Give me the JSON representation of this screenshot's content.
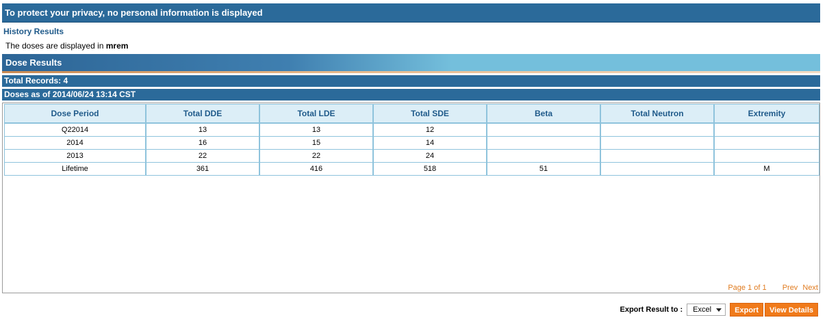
{
  "privacy_banner": "To protect your privacy, no personal information is displayed",
  "history": {
    "title": "History Results",
    "units_prefix": "The doses are displayed in",
    "units": "mrem"
  },
  "dose_results": {
    "header": "Dose Results",
    "total_records": "Total Records: 4",
    "as_of": "Doses as of 2014/06/24 13:14 CST"
  },
  "table": {
    "columns": [
      "Dose Period",
      "Total DDE",
      "Total LDE",
      "Total SDE",
      "Beta",
      "Total Neutron",
      "Extremity"
    ],
    "rows": [
      [
        "Q22014",
        "13",
        "13",
        "12",
        "",
        "",
        ""
      ],
      [
        "2014",
        "16",
        "15",
        "14",
        "",
        "",
        ""
      ],
      [
        "2013",
        "22",
        "22",
        "24",
        "",
        "",
        ""
      ],
      [
        "Lifetime",
        "361",
        "416",
        "518",
        "51",
        "",
        "M"
      ]
    ]
  },
  "pager": {
    "page_info": "Page 1 of 1",
    "prev": "Prev",
    "next": "Next"
  },
  "export": {
    "label": "Export Result to :",
    "format_selected": "Excel",
    "export_button": "Export",
    "view_details_button": "View Details"
  },
  "colors": {
    "banner": "#2b6a9a",
    "accent_orange": "#f07a1a",
    "table_header_bg": "#dceef7",
    "table_border": "#8ec3dc"
  }
}
